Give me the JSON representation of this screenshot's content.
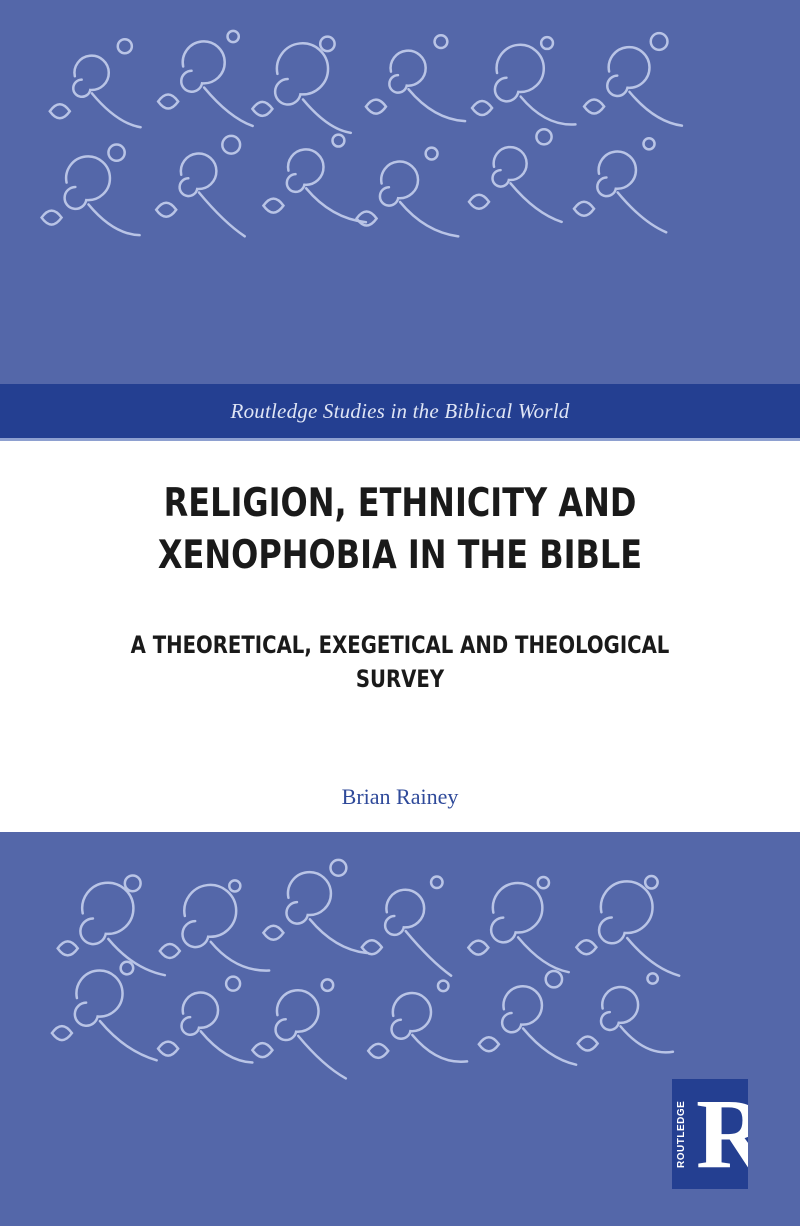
{
  "cover": {
    "series": "Routledge Studies in the Biblical World",
    "title_line1": "RELIGION, ETHNICITY AND",
    "title_line2": "XENOPHOBIA IN THE BIBLE",
    "subtitle_line1": "A THEORETICAL, EXEGETICAL AND THEOLOGICAL",
    "subtitle_line2": "SURVEY",
    "author": "Brian Rainey",
    "publisher_logo_text": "ROUTLEDGE",
    "publisher_logo_letter": "R"
  },
  "colors": {
    "pattern_background": "#5467a9",
    "pattern_lines": "#b9c4e6",
    "band": "#243f91",
    "author_text": "#2f4a9a"
  }
}
